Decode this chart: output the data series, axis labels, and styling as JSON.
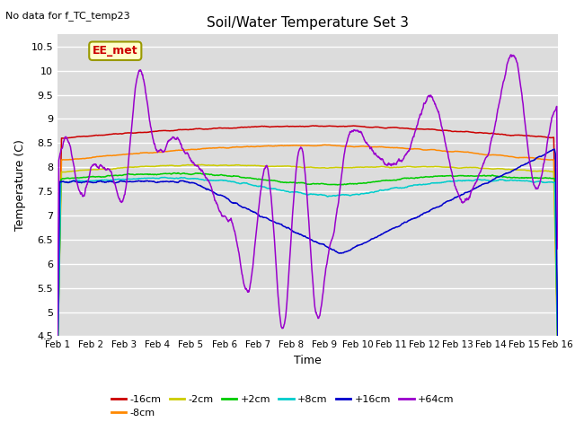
{
  "title": "Soil/Water Temperature Set 3",
  "xlabel": "Time",
  "ylabel": "Temperature (C)",
  "ylim": [
    4.5,
    10.75
  ],
  "xlim": [
    0,
    15
  ],
  "background_color": "#dcdcdc",
  "fig_background": "#ffffff",
  "annotation_text": "No data for f_TC_temp23",
  "annotation_box_text": "EE_met",
  "legend_labels": [
    "-16cm",
    "-8cm",
    "-2cm",
    "+2cm",
    "+8cm",
    "+16cm",
    "+64cm"
  ],
  "line_colors": [
    "#cc0000",
    "#ff8800",
    "#cccc00",
    "#00cc00",
    "#00cccc",
    "#0000cc",
    "#9900cc"
  ],
  "yticks": [
    4.5,
    5.0,
    5.5,
    6.0,
    6.5,
    7.0,
    7.5,
    8.0,
    8.5,
    9.0,
    9.5,
    10.0,
    10.5
  ],
  "xtick_labels": [
    "Feb 1",
    "Feb 2",
    "Feb 3",
    "Feb 4",
    "Feb 5",
    "Feb 6",
    "Feb 7",
    "Feb 8",
    "Feb 9",
    "Feb 10",
    "Feb 11",
    "Feb 12",
    "Feb 13",
    "Feb 14",
    "Feb 15",
    "Feb 16"
  ],
  "xtick_positions": [
    0,
    1,
    2,
    3,
    4,
    5,
    6,
    7,
    8,
    9,
    10,
    11,
    12,
    13,
    14,
    15
  ]
}
